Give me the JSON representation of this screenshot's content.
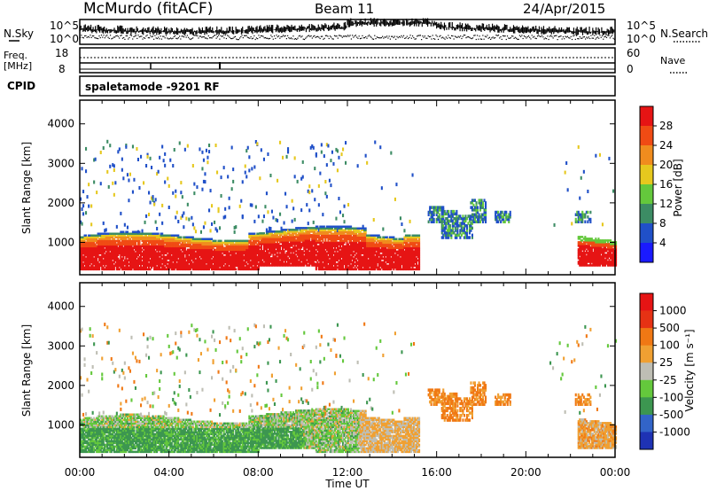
{
  "header": {
    "station": "McMurdo (fitACF)",
    "beam": "Beam 11",
    "date": "24/Apr/2015"
  },
  "noise_panel": {
    "left_label": "N.Sky",
    "right_label": "N.Search",
    "ticks_left": [
      "10^5",
      "10^0"
    ],
    "ticks_right": [
      "10^5",
      "10^0"
    ]
  },
  "freq_panel": {
    "left_label_1": "Freq.",
    "left_label_2": "[MHz]",
    "right_label": "Nave",
    "ticks_left": [
      "18",
      "8"
    ],
    "ticks_right": [
      "60",
      "0"
    ]
  },
  "cpid": {
    "label": "CPID",
    "mode": "spaletamode -9201 RF"
  },
  "chart_data": [
    {
      "type": "heatmap",
      "quantity": "Power",
      "ylabel": "Slant Range [km]",
      "xlabel": "Time UT",
      "x_ticks": [
        "00:00",
        "04:00",
        "08:00",
        "12:00",
        "16:00",
        "20:00",
        "00:00"
      ],
      "y_ticks": [
        1000,
        2000,
        3000,
        4000
      ],
      "ylim": [
        180,
        4600
      ],
      "xlim_hours": [
        0,
        24
      ],
      "colorbar": {
        "label": "Power [dB]",
        "ticks": [
          "4",
          "8",
          "12",
          "16",
          "20",
          "24",
          "28"
        ],
        "colors": [
          "#1a1aff",
          "#2050c8",
          "#3c8c64",
          "#64c83c",
          "#e6c81e",
          "#f08c1e",
          "#f04b14",
          "#e61414"
        ]
      }
    },
    {
      "type": "heatmap",
      "quantity": "Velocity",
      "ylabel": "Slant Range [km]",
      "xlabel": "Time UT",
      "x_ticks": [
        "00:00",
        "04:00",
        "08:00",
        "12:00",
        "16:00",
        "20:00",
        "00:00"
      ],
      "y_ticks": [
        1000,
        2000,
        3000,
        4000
      ],
      "ylim": [
        180,
        4600
      ],
      "xlim_hours": [
        0,
        24
      ],
      "colorbar": {
        "label": "Velocity [m s⁻¹]",
        "ticks": [
          "1000",
          "500",
          "100",
          "25",
          "-25",
          "-100",
          "-500",
          "-1000"
        ],
        "colors": [
          "#1e32b4",
          "#3264c8",
          "#3c9650",
          "#64c83c",
          "#bebeb4",
          "#f0a032",
          "#f07814",
          "#e63214",
          "#e61414"
        ]
      },
      "x_axis_label": "Time UT"
    }
  ]
}
